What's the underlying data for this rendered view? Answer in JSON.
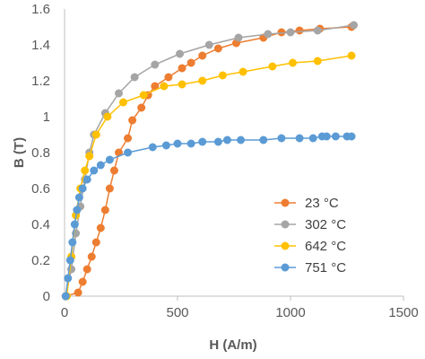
{
  "chart_data": {
    "type": "scatter",
    "title": "",
    "xlabel": "H (A/m)",
    "ylabel": "B (T)",
    "xlim": [
      0,
      1500
    ],
    "ylim": [
      0,
      1.6
    ],
    "x_ticks": [
      "0",
      "500",
      "1000",
      "1500"
    ],
    "y_ticks": [
      "0",
      "0.2",
      "0.4",
      "0.6",
      "0.8",
      "1",
      "1.2",
      "1.4",
      "1.6"
    ],
    "grid": false,
    "legend_position": "right",
    "marker": "circle",
    "series": [
      {
        "name": "23 °C",
        "color": "#ED7D31",
        "x": [
          5,
          60,
          80,
          100,
          120,
          140,
          160,
          180,
          200,
          220,
          240,
          280,
          300,
          340,
          370,
          400,
          460,
          520,
          560,
          610,
          680,
          760,
          880,
          960,
          1040,
          1130,
          1270
        ],
        "y": [
          0,
          0.02,
          0.08,
          0.15,
          0.22,
          0.3,
          0.38,
          0.48,
          0.6,
          0.7,
          0.8,
          0.88,
          0.98,
          1.05,
          1.12,
          1.17,
          1.22,
          1.27,
          1.3,
          1.34,
          1.38,
          1.41,
          1.44,
          1.47,
          1.48,
          1.49,
          1.5
        ]
      },
      {
        "name": "302 °C",
        "color": "#A5A5A5",
        "x": [
          5,
          30,
          50,
          70,
          90,
          110,
          130,
          180,
          240,
          310,
          400,
          510,
          640,
          770,
          900,
          1000,
          1120,
          1280
        ],
        "y": [
          0,
          0.15,
          0.35,
          0.5,
          0.65,
          0.8,
          0.9,
          1.02,
          1.13,
          1.22,
          1.29,
          1.35,
          1.4,
          1.44,
          1.46,
          1.47,
          1.48,
          1.51
        ]
      },
      {
        "name": "642 °C",
        "color": "#FFC000",
        "x": [
          10,
          30,
          50,
          70,
          90,
          110,
          140,
          190,
          260,
          350,
          440,
          520,
          610,
          700,
          790,
          920,
          1010,
          1120,
          1270
        ],
        "y": [
          0,
          0.22,
          0.45,
          0.6,
          0.7,
          0.78,
          0.9,
          1.0,
          1.08,
          1.12,
          1.17,
          1.18,
          1.2,
          1.23,
          1.25,
          1.28,
          1.3,
          1.31,
          1.34
        ]
      },
      {
        "name": "751 °C",
        "color": "#5B9BD5",
        "x": [
          5,
          15,
          25,
          35,
          45,
          55,
          65,
          80,
          100,
          130,
          160,
          200,
          280,
          390,
          450,
          500,
          560,
          610,
          680,
          720,
          780,
          880,
          960,
          1040,
          1100,
          1140,
          1160,
          1200,
          1250,
          1270
        ],
        "y": [
          0,
          0.1,
          0.2,
          0.3,
          0.4,
          0.48,
          0.55,
          0.6,
          0.65,
          0.7,
          0.73,
          0.76,
          0.8,
          0.83,
          0.84,
          0.85,
          0.85,
          0.86,
          0.86,
          0.87,
          0.87,
          0.87,
          0.88,
          0.88,
          0.88,
          0.89,
          0.89,
          0.89,
          0.89,
          0.89
        ]
      }
    ]
  }
}
